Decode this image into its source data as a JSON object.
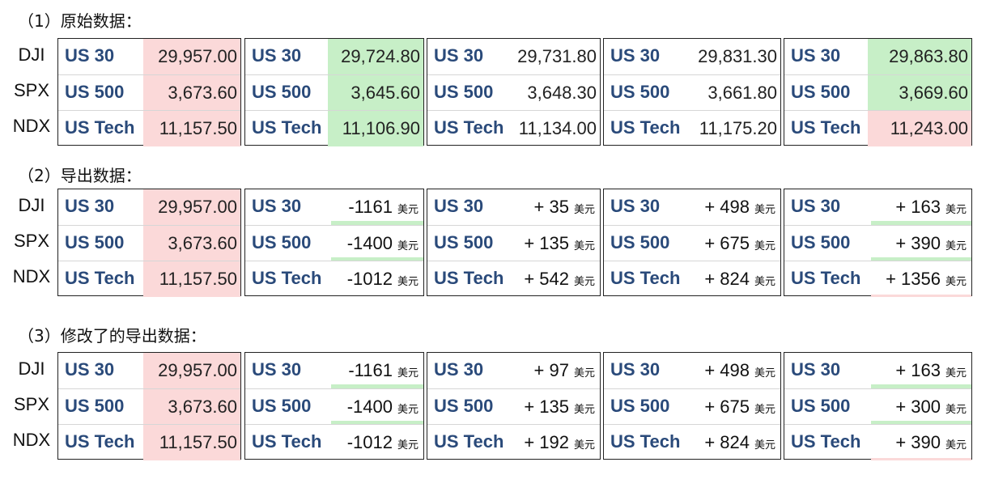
{
  "sections": [
    {
      "title": "（1）原始数据：",
      "row_labels": [
        "DJI",
        "SPX",
        "NDX"
      ],
      "panels": [
        {
          "rows": [
            {
              "symbol": "US 30",
              "value": "29,957.00",
              "bg": "red"
            },
            {
              "symbol": "US 500",
              "value": "3,673.60",
              "bg": "red"
            },
            {
              "symbol": "US Tech",
              "value": "11,157.50",
              "bg": "red"
            }
          ]
        },
        {
          "rows": [
            {
              "symbol": "US 30",
              "value": "29,724.80",
              "bg": "green"
            },
            {
              "symbol": "US 500",
              "value": "3,645.60",
              "bg": "green"
            },
            {
              "symbol": "US Tech",
              "value": "11,106.90",
              "bg": "green"
            }
          ]
        },
        {
          "rows": [
            {
              "symbol": "US 30",
              "value": "29,731.80",
              "bg": "none"
            },
            {
              "symbol": "US 500",
              "value": "3,648.30",
              "bg": "none"
            },
            {
              "symbol": "US Tech",
              "value": "11,134.00",
              "bg": "none"
            }
          ]
        },
        {
          "rows": [
            {
              "symbol": "US 30",
              "value": "29,831.30",
              "bg": "none"
            },
            {
              "symbol": "US 500",
              "value": "3,661.80",
              "bg": "none"
            },
            {
              "symbol": "US Tech",
              "value": "11,175.20",
              "bg": "none"
            }
          ]
        },
        {
          "rows": [
            {
              "symbol": "US 30",
              "value": "29,863.80",
              "bg": "green"
            },
            {
              "symbol": "US 500",
              "value": "3,669.60",
              "bg": "green"
            },
            {
              "symbol": "US Tech",
              "value": "11,243.00",
              "bg": "red"
            }
          ]
        }
      ]
    },
    {
      "title": "（2）导出数据：",
      "row_labels": [
        "DJI",
        "SPX",
        "NDX"
      ],
      "panels": [
        {
          "rows": [
            {
              "symbol": "US 30",
              "value": "29,957.00",
              "bg": "red"
            },
            {
              "symbol": "US 500",
              "value": "3,673.60",
              "bg": "red"
            },
            {
              "symbol": "US Tech",
              "value": "11,157.50",
              "bg": "red"
            }
          ]
        },
        {
          "rows": [
            {
              "symbol": "US 30",
              "delta": "-1161",
              "unit": "美元",
              "bar": "green"
            },
            {
              "symbol": "US 500",
              "delta": "-1400",
              "unit": "美元",
              "bar": "green"
            },
            {
              "symbol": "US Tech",
              "delta": "-1012",
              "unit": "美元",
              "bar": "none"
            }
          ]
        },
        {
          "rows": [
            {
              "symbol": "US 30",
              "delta": "+ 35",
              "unit": "美元",
              "bar": "none"
            },
            {
              "symbol": "US 500",
              "delta": "+ 135",
              "unit": "美元",
              "bar": "none"
            },
            {
              "symbol": "US Tech",
              "delta": "+ 542",
              "unit": "美元",
              "bar": "none"
            }
          ]
        },
        {
          "rows": [
            {
              "symbol": "US 30",
              "delta": "+ 498",
              "unit": "美元",
              "bar": "none"
            },
            {
              "symbol": "US 500",
              "delta": "+ 675",
              "unit": "美元",
              "bar": "none"
            },
            {
              "symbol": "US Tech",
              "delta": "+ 824",
              "unit": "美元",
              "bar": "none"
            }
          ]
        },
        {
          "rows": [
            {
              "symbol": "US 30",
              "delta": "+ 163",
              "unit": "美元",
              "bar": "green"
            },
            {
              "symbol": "US 500",
              "delta": "+ 390",
              "unit": "美元",
              "bar": "green"
            },
            {
              "symbol": "US Tech",
              "delta": "+ 1356",
              "unit": "美元",
              "bar": "red"
            }
          ]
        }
      ]
    },
    {
      "title": "（3）修改了的导出数据：",
      "row_labels": [
        "DJI",
        "SPX",
        "NDX"
      ],
      "panels": [
        {
          "rows": [
            {
              "symbol": "US 30",
              "value": "29,957.00",
              "bg": "red"
            },
            {
              "symbol": "US 500",
              "value": "3,673.60",
              "bg": "red"
            },
            {
              "symbol": "US Tech",
              "value": "11,157.50",
              "bg": "red"
            }
          ]
        },
        {
          "rows": [
            {
              "symbol": "US 30",
              "delta": "-1161",
              "unit": "美元",
              "bar": "green"
            },
            {
              "symbol": "US 500",
              "delta": "-1400",
              "unit": "美元",
              "bar": "green"
            },
            {
              "symbol": "US Tech",
              "delta": "-1012",
              "unit": "美元",
              "bar": "none"
            }
          ]
        },
        {
          "rows": [
            {
              "symbol": "US 30",
              "delta": "+ 97",
              "unit": "美元",
              "bar": "none"
            },
            {
              "symbol": "US 500",
              "delta": "+ 135",
              "unit": "美元",
              "bar": "none"
            },
            {
              "symbol": "US Tech",
              "delta": "+ 192",
              "unit": "美元",
              "bar": "none"
            }
          ]
        },
        {
          "rows": [
            {
              "symbol": "US 30",
              "delta": "+ 498",
              "unit": "美元",
              "bar": "none"
            },
            {
              "symbol": "US 500",
              "delta": "+ 675",
              "unit": "美元",
              "bar": "none"
            },
            {
              "symbol": "US Tech",
              "delta": "+ 824",
              "unit": "美元",
              "bar": "none"
            }
          ]
        },
        {
          "rows": [
            {
              "symbol": "US 30",
              "delta": "+ 163",
              "unit": "美元",
              "bar": "green"
            },
            {
              "symbol": "US 500",
              "delta": "+ 300",
              "unit": "美元",
              "bar": "green"
            },
            {
              "symbol": "US Tech",
              "delta": "+ 390",
              "unit": "美元",
              "bar": "red"
            }
          ]
        }
      ]
    }
  ]
}
